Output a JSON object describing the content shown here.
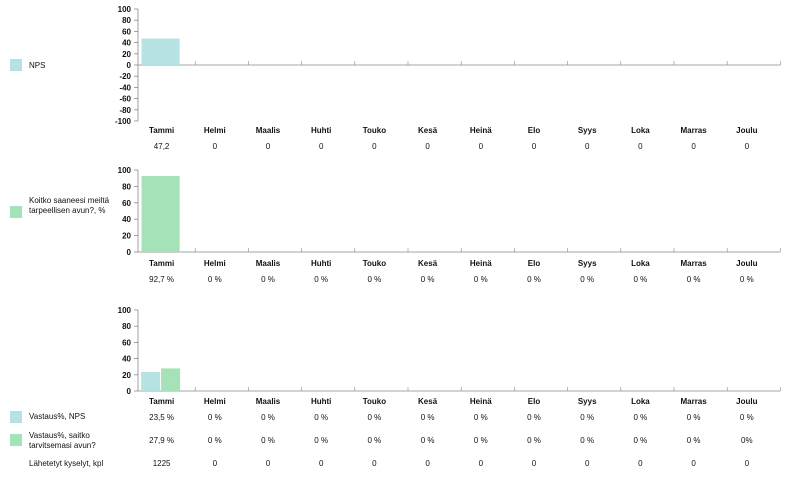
{
  "colors": {
    "nps": "#b6e2e4",
    "help": "#a6e2b8",
    "axis": "#888888",
    "tick_text": "#111111"
  },
  "months": [
    "Tammi",
    "Helmi",
    "Maalis",
    "Huhti",
    "Touko",
    "Kesä",
    "Heinä",
    "Elo",
    "Syys",
    "Loka",
    "Marras",
    "Joulu"
  ],
  "legends": {
    "nps": "NPS",
    "help": "Koitko saaneesi meiltä tarpeellisen avun?, %",
    "resp_nps": "Vastaus%, NPS",
    "resp_help": "Vastaus%, saitko tarvitsemasi avun?",
    "sent": "Lähetetyt kyselyt, kpl"
  },
  "chart_data": [
    {
      "type": "bar",
      "categories": [
        "Tammi",
        "Helmi",
        "Maalis",
        "Huhti",
        "Touko",
        "Kesä",
        "Heinä",
        "Elo",
        "Syys",
        "Loka",
        "Marras",
        "Joulu"
      ],
      "series": [
        {
          "name": "NPS",
          "color": "#b6e2e4",
          "values": [
            47.2,
            0,
            0,
            0,
            0,
            0,
            0,
            0,
            0,
            0,
            0,
            0
          ]
        }
      ],
      "ylim": [
        -100,
        100
      ],
      "yticks": [
        "100",
        "80",
        "60",
        "40",
        "20",
        "0",
        "-20",
        "-40",
        "-60",
        "-80",
        "-100"
      ],
      "table_rows": [
        [
          "47,2",
          "0",
          "0",
          "0",
          "0",
          "0",
          "0",
          "0",
          "0",
          "0",
          "0",
          "0"
        ]
      ]
    },
    {
      "type": "bar",
      "categories": [
        "Tammi",
        "Helmi",
        "Maalis",
        "Huhti",
        "Touko",
        "Kesä",
        "Heinä",
        "Elo",
        "Syys",
        "Loka",
        "Marras",
        "Joulu"
      ],
      "series": [
        {
          "name": "Koitko saaneesi meiltä tarpeellisen avun?, %",
          "color": "#a6e2b8",
          "values": [
            92.7,
            0,
            0,
            0,
            0,
            0,
            0,
            0,
            0,
            0,
            0,
            0
          ]
        }
      ],
      "ylim": [
        0,
        100
      ],
      "yticks": [
        "100",
        "80",
        "60",
        "40",
        "20",
        "0"
      ],
      "table_rows": [
        [
          "92,7 %",
          "0 %",
          "0 %",
          "0 %",
          "0 %",
          "0 %",
          "0 %",
          "0 %",
          "0 %",
          "0 %",
          "0 %",
          "0 %"
        ]
      ]
    },
    {
      "type": "bar",
      "categories": [
        "Tammi",
        "Helmi",
        "Maalis",
        "Huhti",
        "Touko",
        "Kesä",
        "Heinä",
        "Elo",
        "Syys",
        "Loka",
        "Marras",
        "Joulu"
      ],
      "series": [
        {
          "name": "Vastaus%, NPS",
          "color": "#b6e2e4",
          "values": [
            23.5,
            0,
            0,
            0,
            0,
            0,
            0,
            0,
            0,
            0,
            0,
            0
          ]
        },
        {
          "name": "Vastaus%, saitko tarvitsemasi avun?",
          "color": "#a6e2b8",
          "values": [
            27.9,
            0,
            0,
            0,
            0,
            0,
            0,
            0,
            0,
            0,
            0,
            0
          ]
        }
      ],
      "ylim": [
        0,
        100
      ],
      "yticks": [
        "100",
        "80",
        "60",
        "40",
        "20",
        "0"
      ],
      "table_rows": [
        [
          "23,5 %",
          "0 %",
          "0 %",
          "0 %",
          "0 %",
          "0 %",
          "0 %",
          "0 %",
          "0 %",
          "0 %",
          "0 %",
          "0 %"
        ],
        [
          "27,9 %",
          "0 %",
          "0 %",
          "0 %",
          "0 %",
          "0 %",
          "0 %",
          "0 %",
          "0 %",
          "0 %",
          "0 %",
          "0%"
        ],
        [
          "1225",
          "0",
          "0",
          "0",
          "0",
          "0",
          "0",
          "0",
          "0",
          "0",
          "0",
          "0"
        ]
      ]
    }
  ]
}
